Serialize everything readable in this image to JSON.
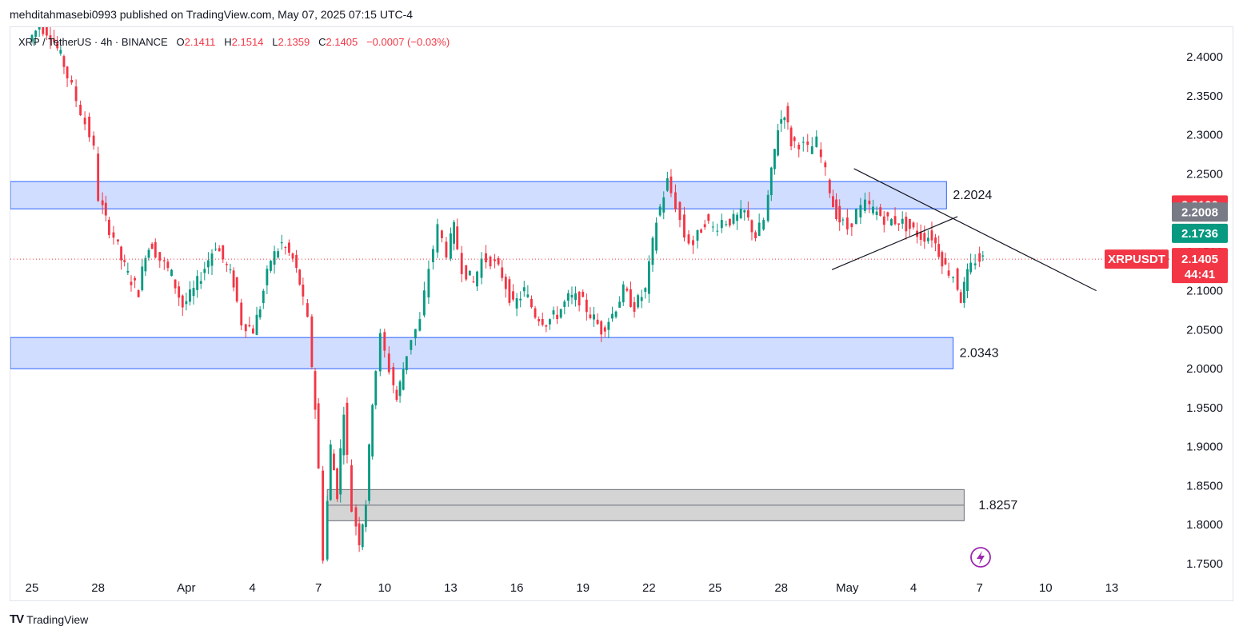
{
  "header": {
    "published": "mehditahmasebi0993 published on TradingView.com, May 07, 2025 07:15 UTC-4"
  },
  "legend": {
    "symbol": "XRP / TetherUS · 4h · BINANCE",
    "o_label": "O",
    "o_value": "2.1411",
    "h_label": "H",
    "h_value": "2.1514",
    "l_label": "L",
    "l_value": "2.1359",
    "c_label": "C",
    "c_value": "2.1405",
    "change": "−0.0007 (−0.03%)"
  },
  "footer": {
    "brand": "TradingView"
  },
  "colors": {
    "up": "#089981",
    "down": "#f23645",
    "zone_blue": "#d1ddff",
    "zone_blue_border": "#2962ff",
    "zone_gray": "#d4d4d4",
    "price_tag": "#f23645",
    "tag_gray": "#787b86",
    "tag_green": "#089981"
  },
  "chart_data": {
    "type": "candlestick",
    "symbol": "XRPUSDT",
    "timeframe": "4h",
    "ylim": [
      1.735,
      2.42
    ],
    "y_ticks": [
      "2.4000",
      "2.3500",
      "2.3000",
      "2.2500",
      "2.2000",
      "2.1500",
      "2.1000",
      "2.0500",
      "2.0000",
      "1.9500",
      "1.9000",
      "1.8500",
      "1.8000",
      "1.7500"
    ],
    "x_ticks": [
      {
        "label": "25",
        "day": 0
      },
      {
        "label": "28",
        "day": 3
      },
      {
        "label": "Apr",
        "day": 7
      },
      {
        "label": "4",
        "day": 10
      },
      {
        "label": "7",
        "day": 13
      },
      {
        "label": "10",
        "day": 16
      },
      {
        "label": "13",
        "day": 19
      },
      {
        "label": "16",
        "day": 22
      },
      {
        "label": "19",
        "day": 25
      },
      {
        "label": "22",
        "day": 28
      },
      {
        "label": "25",
        "day": 31
      },
      {
        "label": "28",
        "day": 34
      },
      {
        "label": "May",
        "day": 37
      },
      {
        "label": "4",
        "day": 40
      },
      {
        "label": "7",
        "day": 43
      },
      {
        "label": "10",
        "day": 46
      },
      {
        "label": "13",
        "day": 49
      }
    ],
    "last_price": 2.1405,
    "countdown": "44:41",
    "price_tags": [
      {
        "label": "2.2100",
        "value": 2.21,
        "color": "#f23645"
      },
      {
        "label": "2.2008",
        "value": 2.2008,
        "color": "#787b86"
      },
      {
        "label": "2.1736",
        "value": 2.1736,
        "color": "#089981"
      }
    ],
    "symbol_tag": "XRPUSDT",
    "zones": [
      {
        "label": "2.2024",
        "top": 2.24,
        "bottom": 2.205,
        "start_day": -1,
        "end_day": 41.5,
        "kind": "resistance"
      },
      {
        "label": "2.0343",
        "top": 2.04,
        "bottom": 2.0,
        "start_day": -1,
        "end_day": 41.8,
        "kind": "support"
      },
      {
        "label": "1.8257",
        "top": 1.845,
        "bottom": 1.805,
        "start_day": 13.4,
        "end_day": 42.3,
        "kind": "demand"
      }
    ],
    "trendlines": [
      {
        "name": "descending",
        "x1_day": 37.3,
        "y1": 2.2565,
        "x2_day": 48.3,
        "y2": 2.1
      },
      {
        "name": "ascending",
        "x1_day": 36.3,
        "y1": 2.127,
        "x2_day": 42.0,
        "y2": 2.195
      }
    ],
    "path": [
      [
        0,
        2.42
      ],
      [
        0.5,
        2.44
      ],
      [
        1.0,
        2.43
      ],
      [
        1.6,
        2.39
      ],
      [
        2.0,
        2.36
      ],
      [
        2.4,
        2.33
      ],
      [
        2.8,
        2.3
      ],
      [
        3.0,
        2.28
      ],
      [
        3.2,
        2.22
      ],
      [
        3.5,
        2.19
      ],
      [
        3.9,
        2.17
      ],
      [
        4.2,
        2.14
      ],
      [
        4.5,
        2.12
      ],
      [
        5.0,
        2.1
      ],
      [
        5.3,
        2.15
      ],
      [
        5.6,
        2.16
      ],
      [
        6.0,
        2.14
      ],
      [
        6.5,
        2.12
      ],
      [
        7.0,
        2.08
      ],
      [
        7.5,
        2.1
      ],
      [
        8.0,
        2.13
      ],
      [
        8.5,
        2.16
      ],
      [
        9.0,
        2.13
      ],
      [
        9.3,
        2.11
      ],
      [
        9.7,
        2.06
      ],
      [
        10.2,
        2.05
      ],
      [
        10.5,
        2.08
      ],
      [
        11.0,
        2.14
      ],
      [
        11.5,
        2.16
      ],
      [
        12.0,
        2.14
      ],
      [
        12.3,
        2.11
      ],
      [
        12.7,
        2.06
      ],
      [
        13.0,
        1.95
      ],
      [
        13.2,
        1.87
      ],
      [
        13.4,
        1.76
      ],
      [
        13.7,
        1.9
      ],
      [
        14.0,
        1.84
      ],
      [
        14.3,
        1.95
      ],
      [
        14.7,
        1.82
      ],
      [
        15.0,
        1.78
      ],
      [
        15.3,
        1.83
      ],
      [
        15.6,
        1.96
      ],
      [
        16.0,
        2.04
      ],
      [
        16.4,
        2.0
      ],
      [
        16.7,
        1.96
      ],
      [
        17.0,
        2.0
      ],
      [
        17.4,
        2.04
      ],
      [
        17.8,
        2.06
      ],
      [
        18.2,
        2.13
      ],
      [
        18.6,
        2.18
      ],
      [
        19.0,
        2.15
      ],
      [
        19.3,
        2.18
      ],
      [
        19.7,
        2.13
      ],
      [
        20.2,
        2.11
      ],
      [
        20.6,
        2.14
      ],
      [
        21.0,
        2.14
      ],
      [
        21.5,
        2.12
      ],
      [
        22.0,
        2.08
      ],
      [
        22.5,
        2.1
      ],
      [
        23.0,
        2.07
      ],
      [
        23.5,
        2.06
      ],
      [
        24.0,
        2.07
      ],
      [
        24.5,
        2.09
      ],
      [
        25.0,
        2.09
      ],
      [
        25.5,
        2.07
      ],
      [
        26.0,
        2.05
      ],
      [
        26.5,
        2.07
      ],
      [
        27.0,
        2.1
      ],
      [
        27.5,
        2.08
      ],
      [
        28.0,
        2.1
      ],
      [
        28.5,
        2.19
      ],
      [
        29.0,
        2.24
      ],
      [
        29.4,
        2.21
      ],
      [
        29.8,
        2.17
      ],
      [
        30.2,
        2.16
      ],
      [
        30.7,
        2.19
      ],
      [
        31.1,
        2.18
      ],
      [
        31.5,
        2.19
      ],
      [
        32.0,
        2.19
      ],
      [
        32.5,
        2.2
      ],
      [
        33.0,
        2.17
      ],
      [
        33.4,
        2.19
      ],
      [
        33.7,
        2.25
      ],
      [
        34.0,
        2.31
      ],
      [
        34.3,
        2.33
      ],
      [
        34.6,
        2.29
      ],
      [
        35.0,
        2.29
      ],
      [
        35.4,
        2.28
      ],
      [
        35.8,
        2.29
      ],
      [
        36.2,
        2.25
      ],
      [
        36.5,
        2.21
      ],
      [
        36.8,
        2.19
      ],
      [
        37.2,
        2.18
      ],
      [
        37.6,
        2.2
      ],
      [
        38.0,
        2.21
      ],
      [
        38.5,
        2.2
      ],
      [
        39.0,
        2.19
      ],
      [
        39.5,
        2.19
      ],
      [
        40.0,
        2.18
      ],
      [
        40.5,
        2.17
      ],
      [
        41.0,
        2.17
      ],
      [
        41.3,
        2.15
      ],
      [
        41.6,
        2.13
      ],
      [
        42.0,
        2.12
      ],
      [
        42.3,
        2.09
      ],
      [
        42.6,
        2.12
      ],
      [
        43.0,
        2.14
      ],
      [
        43.3,
        2.1405
      ]
    ]
  }
}
